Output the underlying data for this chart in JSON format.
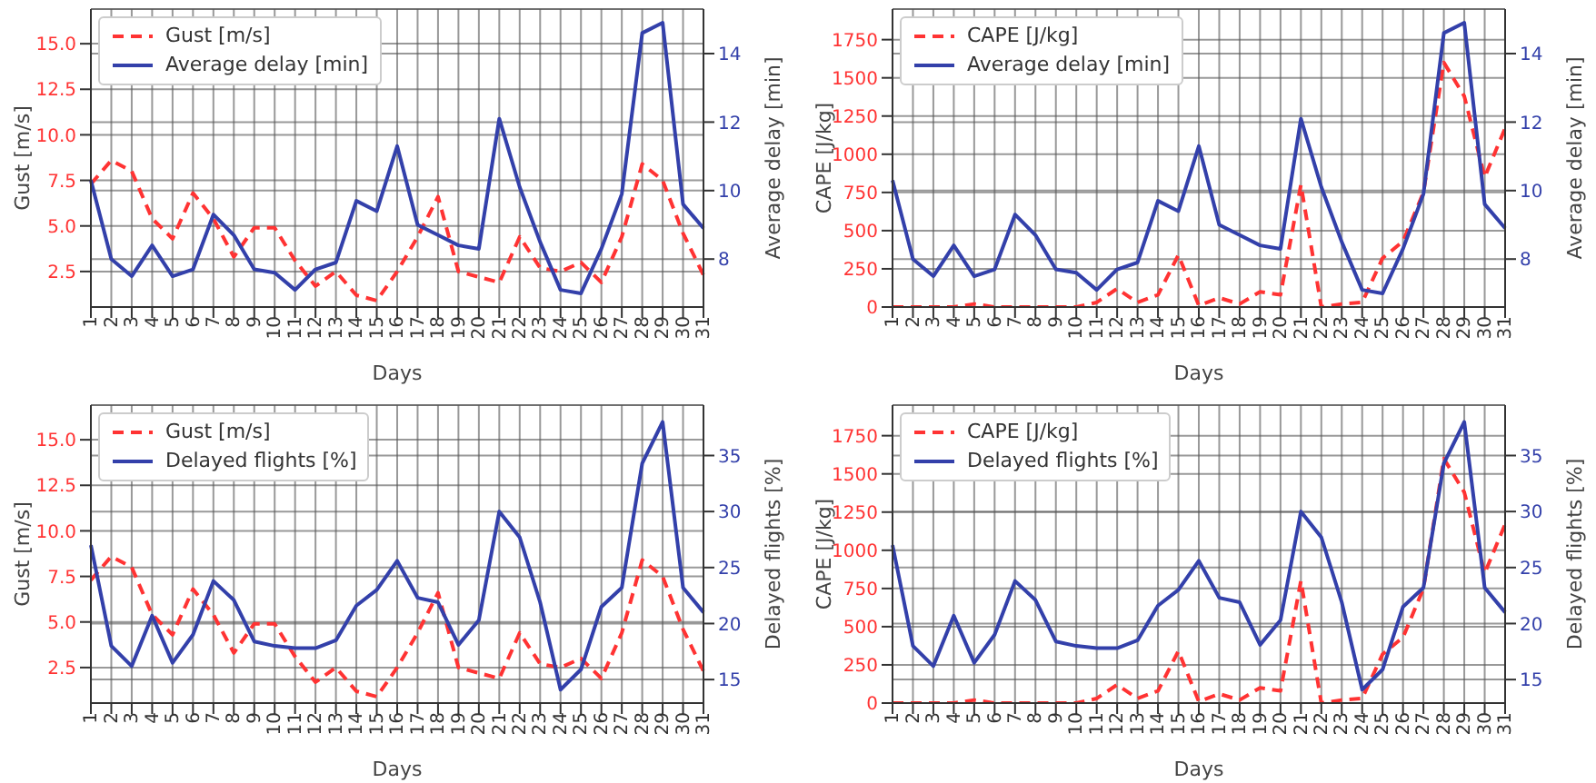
{
  "chart_data": [
    {
      "type": "line",
      "xlabel": "Days",
      "ylabel": "Gust [m/s]",
      "y2label": "Average delay [min]",
      "categories": [
        "1",
        "2",
        "3",
        "4",
        "5",
        "6",
        "7",
        "8",
        "9",
        "10",
        "11",
        "12",
        "13",
        "14",
        "15",
        "16",
        "17",
        "18",
        "19",
        "20",
        "21",
        "22",
        "23",
        "24",
        "25",
        "26",
        "27",
        "28",
        "29",
        "30",
        "31"
      ],
      "series": [
        {
          "name": "Gust [m/s]",
          "color": "#ff3333",
          "line_style": "dashed",
          "values": [
            7.3,
            8.6,
            8.0,
            5.4,
            4.3,
            6.8,
            5.4,
            3.3,
            4.9,
            4.9,
            3.1,
            1.7,
            2.5,
            1.2,
            0.9,
            2.5,
            4.4,
            6.6,
            2.5,
            2.2,
            1.9,
            4.4,
            2.7,
            2.5,
            3.0,
            1.9,
            4.4,
            8.4,
            7.5,
            4.6,
            2.3
          ]
        },
        {
          "name": "Average delay [min]",
          "color": "#3340aa",
          "line_style": "solid",
          "axis": "y2",
          "values": [
            10.3,
            8.0,
            7.5,
            8.4,
            7.5,
            7.7,
            9.3,
            8.7,
            7.7,
            7.6,
            7.1,
            7.7,
            7.9,
            9.7,
            9.4,
            11.3,
            9.0,
            8.7,
            8.4,
            8.3,
            12.1,
            10.1,
            8.5,
            7.1,
            7.0,
            8.3,
            9.9,
            14.6,
            14.9,
            9.6,
            8.9
          ]
        }
      ],
      "ylim": [
        0.55,
        16.9
      ],
      "yticks": [
        2.5,
        {
          "value": 5,
          "label": "5.0"
        },
        7.5,
        {
          "value": 10,
          "label": "10.0"
        },
        12.5,
        {
          "value": 15,
          "label": "15.0"
        }
      ],
      "y2lim": [
        6.6,
        15.3
      ],
      "y2ticks": [
        8,
        10,
        12,
        14
      ],
      "grid": true,
      "legend": "top left"
    },
    {
      "type": "line",
      "xlabel": "Days",
      "ylabel": "CAPE [J/kg]",
      "y2label": "Average delay [min]",
      "categories": [
        "1",
        "2",
        "3",
        "4",
        "5",
        "6",
        "7",
        "8",
        "9",
        "10",
        "11",
        "12",
        "13",
        "14",
        "15",
        "16",
        "17",
        "18",
        "19",
        "20",
        "21",
        "22",
        "23",
        "24",
        "25",
        "26",
        "27",
        "28",
        "29",
        "30",
        "31"
      ],
      "series": [
        {
          "name": "CAPE [J/kg]",
          "color": "#ff3333",
          "line_style": "dashed",
          "values": [
            0,
            0,
            0,
            0,
            20,
            0,
            0,
            0,
            0,
            0,
            30,
            120,
            30,
            80,
            340,
            10,
            60,
            20,
            100,
            80,
            800,
            0,
            20,
            30,
            320,
            430,
            750,
            1600,
            1380,
            850,
            1170
          ]
        },
        {
          "name": "Average delay [min]",
          "color": "#3340aa",
          "line_style": "solid",
          "axis": "y2",
          "values": [
            10.3,
            8.0,
            7.5,
            8.4,
            7.5,
            7.7,
            9.3,
            8.7,
            7.7,
            7.6,
            7.1,
            7.7,
            7.9,
            9.7,
            9.4,
            11.3,
            9.0,
            8.7,
            8.4,
            8.3,
            12.1,
            10.1,
            8.5,
            7.1,
            7.0,
            8.3,
            9.9,
            14.6,
            14.9,
            9.6,
            8.9
          ]
        }
      ],
      "ylim": [
        0,
        1950
      ],
      "yticks": [
        0,
        250,
        500,
        750,
        1000,
        1250,
        1500,
        1750
      ],
      "y2lim": [
        6.6,
        15.3
      ],
      "y2ticks": [
        8,
        10,
        12,
        14
      ],
      "grid": true,
      "legend": "top left"
    },
    {
      "type": "line",
      "xlabel": "Days",
      "ylabel": "Gust [m/s]",
      "y2label": "Delayed flights [%]",
      "categories": [
        "1",
        "2",
        "3",
        "4",
        "5",
        "6",
        "7",
        "8",
        "9",
        "10",
        "11",
        "12",
        "13",
        "14",
        "15",
        "16",
        "17",
        "18",
        "19",
        "20",
        "21",
        "22",
        "23",
        "24",
        "25",
        "26",
        "27",
        "28",
        "29",
        "30",
        "31"
      ],
      "series": [
        {
          "name": "Gust [m/s]",
          "color": "#ff3333",
          "line_style": "dashed",
          "values": [
            7.3,
            8.6,
            8.0,
            5.4,
            4.3,
            6.8,
            5.4,
            3.3,
            4.9,
            4.9,
            3.1,
            1.7,
            2.5,
            1.2,
            0.9,
            2.5,
            4.4,
            6.6,
            2.5,
            2.2,
            1.9,
            4.4,
            2.7,
            2.5,
            3.0,
            1.9,
            4.4,
            8.4,
            7.5,
            4.6,
            2.3
          ]
        },
        {
          "name": "Delayed flights [%]",
          "color": "#3340aa",
          "line_style": "solid",
          "axis": "y2",
          "values": [
            27.0,
            18.0,
            16.2,
            20.7,
            16.5,
            19.0,
            23.8,
            22.1,
            18.4,
            18.0,
            17.8,
            17.8,
            18.5,
            21.6,
            23.0,
            25.6,
            22.3,
            21.9,
            18.1,
            20.3,
            30.0,
            27.7,
            21.9,
            14.1,
            15.9,
            21.5,
            23.2,
            34.3,
            38.0,
            23.2,
            21.0
          ]
        }
      ],
      "ylim": [
        0.55,
        16.9
      ],
      "yticks": [
        2.5,
        {
          "value": 5,
          "label": "5.0"
        },
        7.5,
        {
          "value": 10,
          "label": "10.0"
        },
        12.5,
        {
          "value": 15,
          "label": "15.0"
        }
      ],
      "y2lim": [
        12.9,
        39.5
      ],
      "y2ticks": [
        15,
        20,
        25,
        30,
        35
      ],
      "grid": true,
      "legend": "top left"
    },
    {
      "type": "line",
      "xlabel": "Days",
      "ylabel": "CAPE [J/kg]",
      "y2label": "Delayed flights [%]",
      "categories": [
        "1",
        "2",
        "3",
        "4",
        "5",
        "6",
        "7",
        "8",
        "9",
        "10",
        "11",
        "12",
        "13",
        "14",
        "15",
        "16",
        "17",
        "18",
        "19",
        "20",
        "21",
        "22",
        "23",
        "24",
        "25",
        "26",
        "27",
        "28",
        "29",
        "30",
        "31"
      ],
      "series": [
        {
          "name": "CAPE [J/kg]",
          "color": "#ff3333",
          "line_style": "dashed",
          "values": [
            0,
            0,
            0,
            0,
            20,
            0,
            0,
            0,
            0,
            0,
            30,
            120,
            30,
            80,
            340,
            10,
            60,
            20,
            100,
            80,
            800,
            0,
            20,
            30,
            320,
            430,
            750,
            1600,
            1380,
            850,
            1170
          ]
        },
        {
          "name": "Delayed flights [%]",
          "color": "#3340aa",
          "line_style": "solid",
          "axis": "y2",
          "values": [
            27.0,
            18.0,
            16.2,
            20.7,
            16.5,
            19.0,
            23.8,
            22.1,
            18.4,
            18.0,
            17.8,
            17.8,
            18.5,
            21.6,
            23.0,
            25.6,
            22.3,
            21.9,
            18.1,
            20.3,
            30.0,
            27.7,
            21.9,
            14.1,
            15.9,
            21.5,
            23.2,
            34.3,
            38.0,
            23.2,
            21.0
          ]
        }
      ],
      "ylim": [
        0,
        1950
      ],
      "yticks": [
        0,
        250,
        500,
        750,
        1000,
        1250,
        1500,
        1750
      ],
      "y2lim": [
        12.9,
        39.5
      ],
      "y2ticks": [
        15,
        20,
        25,
        30,
        35
      ],
      "grid": true,
      "legend": "top left"
    }
  ]
}
